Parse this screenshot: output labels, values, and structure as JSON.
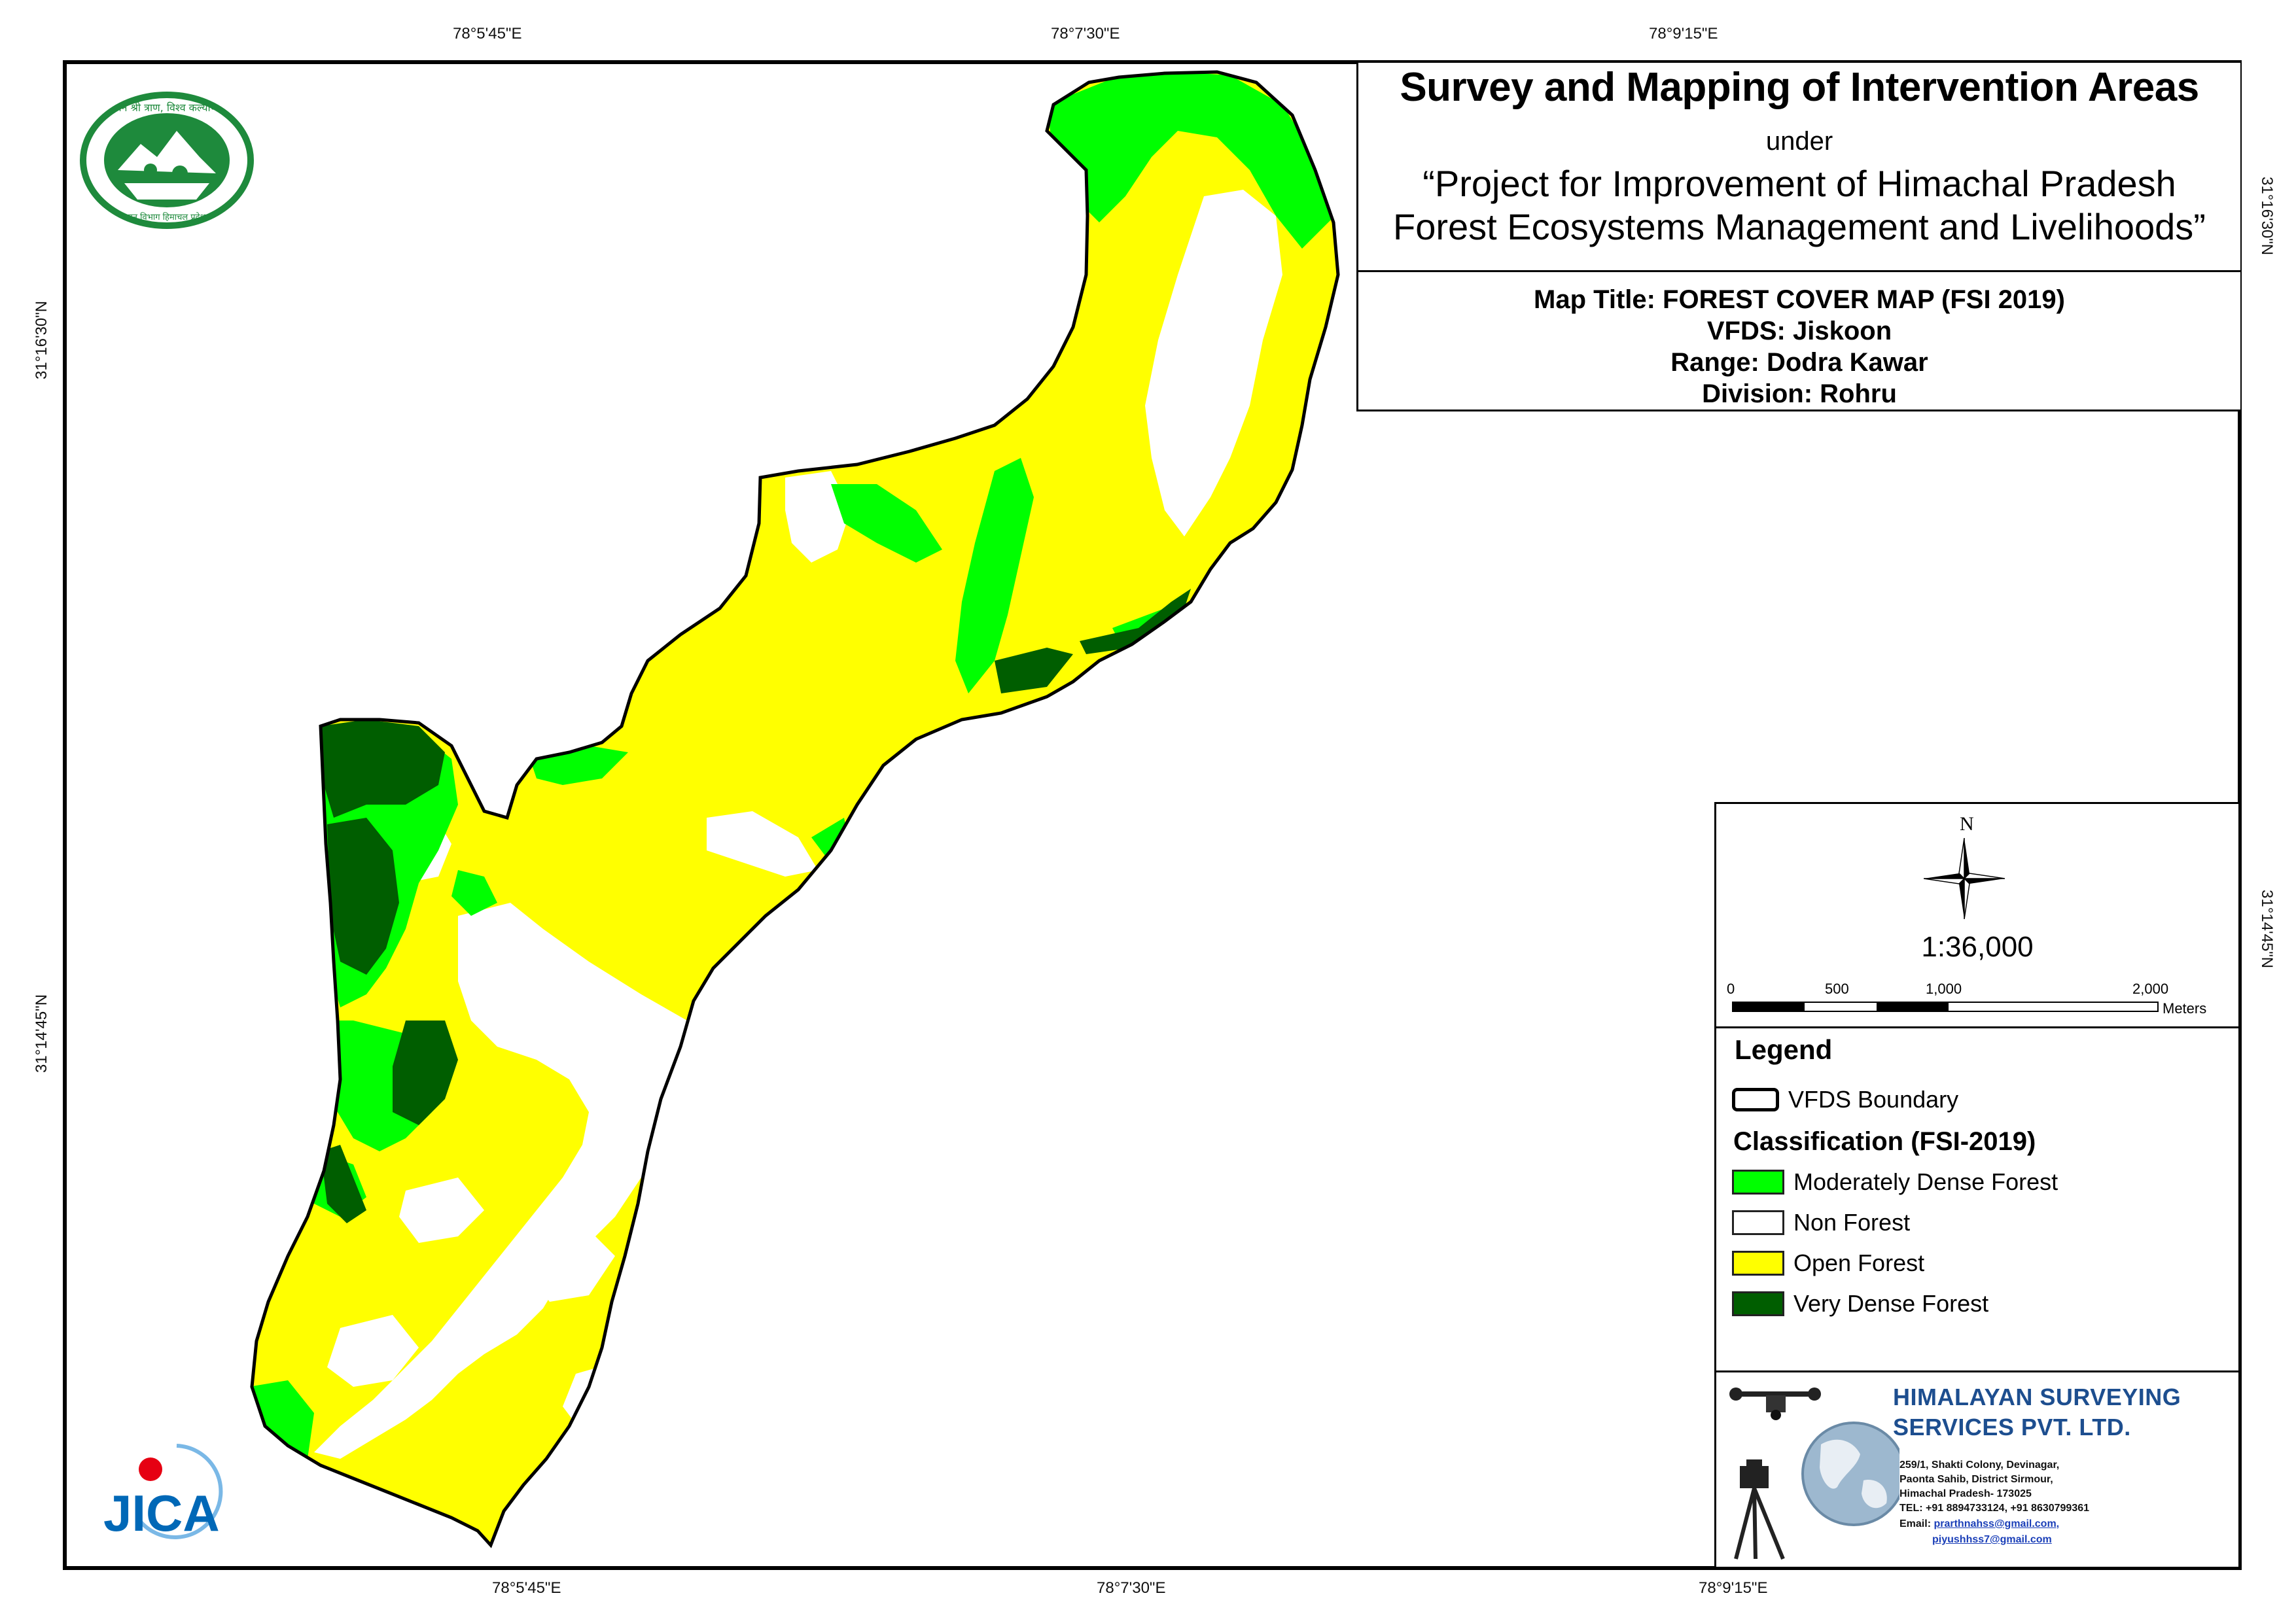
{
  "title": {
    "main": "Survey and Mapping of Intervention Areas",
    "under": "under",
    "project_line1": "“Project for Improvement of Himachal Pradesh",
    "project_line2": "Forest Ecosystems Management and Livelihoods”"
  },
  "map_info": {
    "map_title": "Map Title: FOREST COVER MAP (FSI 2019)",
    "vfds": "VFDS: Jiskoon",
    "range": "Range: Dodra Kawar",
    "division": "Division: Rohru"
  },
  "coordinates": {
    "top": [
      "78°5'45\"E",
      "78°7'30\"E",
      "78°9'15\"E"
    ],
    "bottom": [
      "78°5'45\"E",
      "78°7'30\"E",
      "78°9'15\"E"
    ],
    "left": [
      "31°16'30\"N",
      "31°14'45\"N"
    ],
    "right": [
      "31°16'30\"N",
      "31°14'45\"N"
    ]
  },
  "north": {
    "label": "N",
    "icon": "compass-rose-icon"
  },
  "scale": {
    "ratio": "1:36,000",
    "ticks": [
      "0",
      "500",
      "1,000",
      "2,000"
    ],
    "tick_values_m": [
      0,
      500,
      1000,
      2000
    ],
    "unit": "Meters"
  },
  "legend": {
    "title": "Legend",
    "boundary_label": "VFDS Boundary",
    "classification_title": "Classification (FSI-2019)",
    "classes": [
      {
        "label": "Moderately Dense Forest",
        "color": "#00ff00"
      },
      {
        "label": "Non Forest",
        "color": "#ffffff"
      },
      {
        "label": "Open Forest",
        "color": "#ffff00"
      },
      {
        "label": "Very Dense Forest",
        "color": "#005e00"
      }
    ]
  },
  "company": {
    "name_line1": "HIMALAYAN SURVEYING",
    "name_line2": "SERVICES PVT. LTD.",
    "address": [
      "259/1, Shakti Colony, Devinagar,",
      "Paonta Sahib, District Sirmour,",
      "Himachal Pradesh- 173025",
      "TEL: +91 8894733124, +91 8630799361"
    ],
    "email_label": "Email:",
    "email1": "prarthnahss@gmail.com,",
    "email2": "piyushhss7@gmail.com"
  },
  "logos": {
    "forest_dept_text": "वन श्री त्राण, विश्व कल्याण",
    "forest_dept_bottom": "वन विभाग हिमाचल प्रदेश",
    "jica": "JICA"
  }
}
